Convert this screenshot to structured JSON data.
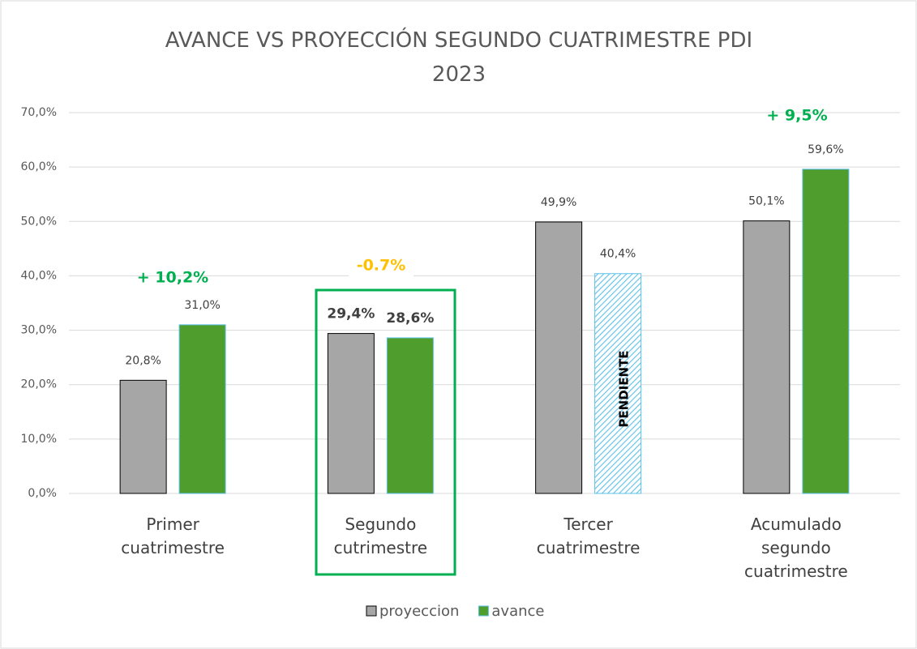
{
  "chart_data": {
    "type": "bar",
    "title": "AVANCE VS PROYECCIÓN SEGUNDO CUATRIMESTRE PDI 2023",
    "categories": [
      "Primer cuatrimestre",
      "Segundo cutrimestre",
      "Tercer cuatrimestre",
      "Acumulado segundo cuatrimestre"
    ],
    "series": [
      {
        "name": "proyeccion",
        "color": "#a6a6a6",
        "values": [
          20.8,
          29.4,
          49.9,
          50.1
        ],
        "value_labels": [
          "20,8%",
          "29,4%",
          "49,9%",
          "50,1%"
        ]
      },
      {
        "name": "avance",
        "color": "#4e9d2d",
        "values": [
          31.0,
          28.6,
          40.4,
          59.6
        ],
        "value_labels": [
          "31,0%",
          "28,6%",
          "40,4%",
          "59,6%"
        ],
        "hatched": [
          false,
          false,
          true,
          false
        ]
      }
    ],
    "ylim": [
      0,
      70
    ],
    "yticks": [
      {
        "value": 0,
        "label": "0,0%"
      },
      {
        "value": 10,
        "label": "10,0%"
      },
      {
        "value": 20,
        "label": "20,0%"
      },
      {
        "value": 30,
        "label": "30,0%"
      },
      {
        "value": 40,
        "label": "40,0%"
      },
      {
        "value": 50,
        "label": "50,0%"
      },
      {
        "value": 60,
        "label": "60,0%"
      },
      {
        "value": 70,
        "label": "70,0%"
      }
    ],
    "grid": true,
    "annotations": [
      {
        "text": "+ 10,2%",
        "color": "#00b050"
      },
      {
        "text": "-0.7%",
        "color": "#ffc000"
      },
      {
        "text": "+ 9,5%",
        "color": "#00b050"
      },
      {
        "text": "PENDIENTE",
        "color": "#000000"
      }
    ]
  }
}
